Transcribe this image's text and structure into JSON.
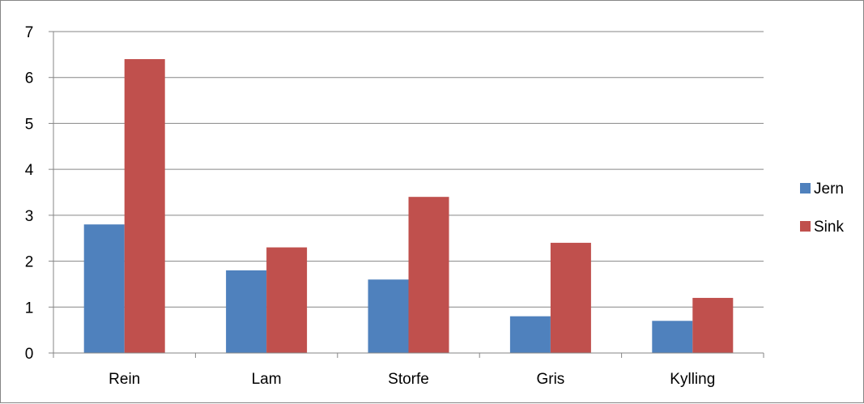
{
  "chart_data": {
    "type": "bar",
    "title": "",
    "xlabel": "",
    "ylabel": "",
    "categories": [
      "Rein",
      "Lam",
      "Storfe",
      "Gris",
      "Kylling"
    ],
    "series": [
      {
        "name": "Jern",
        "color": "#4F81BD",
        "values": [
          2.8,
          1.8,
          1.6,
          0.8,
          0.7
        ]
      },
      {
        "name": "Sink",
        "color": "#C0504D",
        "values": [
          6.4,
          2.3,
          3.4,
          2.4,
          1.2
        ]
      }
    ],
    "ylim": [
      0,
      7
    ],
    "yticks": [
      "0",
      "1",
      "2",
      "3",
      "4",
      "5",
      "6",
      "7"
    ],
    "grid": true,
    "legend_position": "right"
  }
}
